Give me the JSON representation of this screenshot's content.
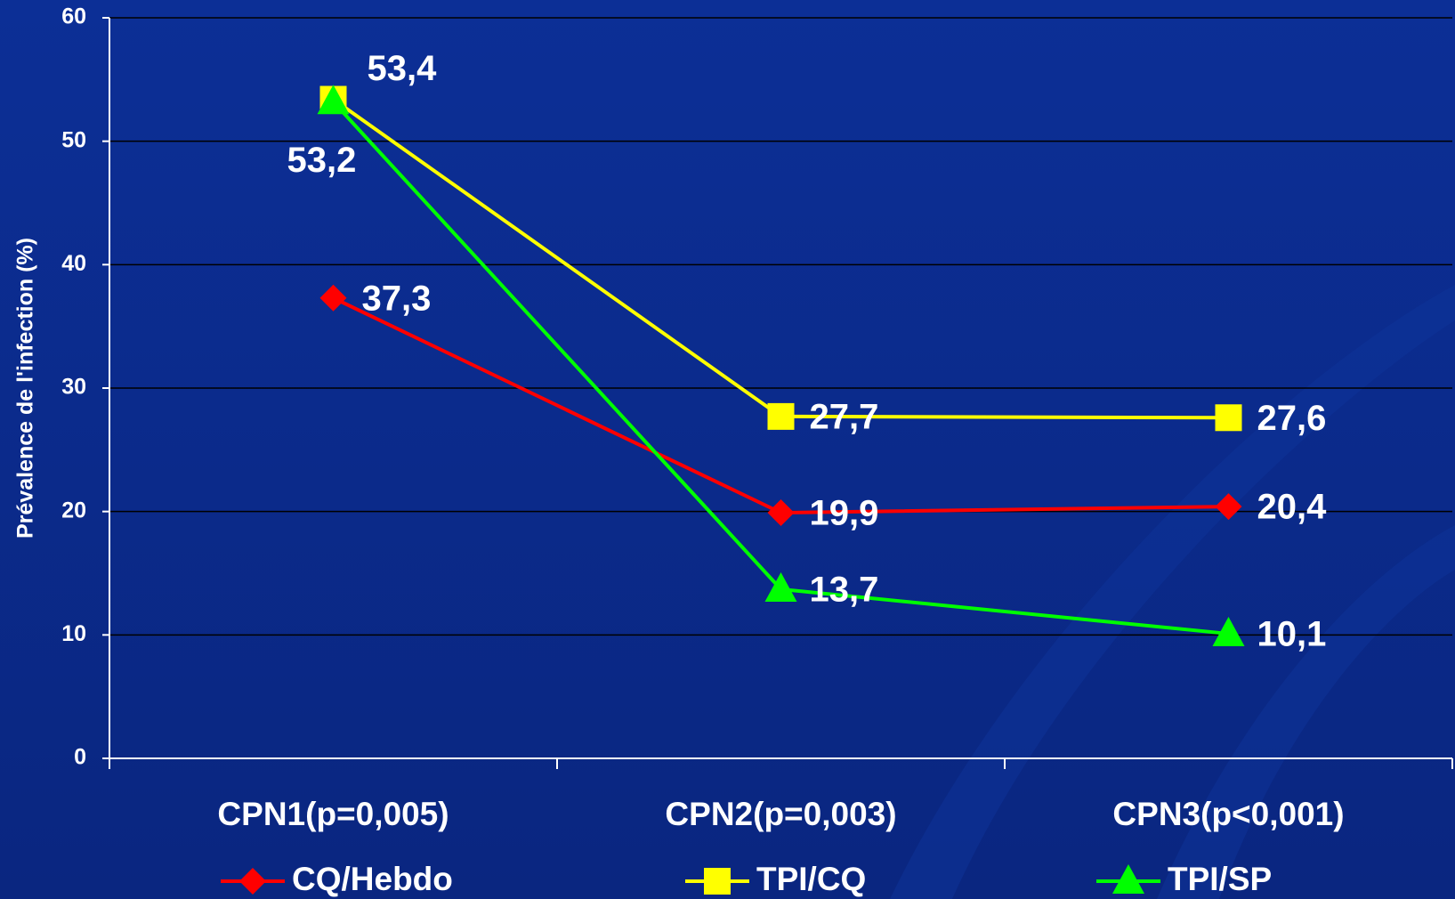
{
  "chart_data": {
    "type": "line",
    "y_label": "Prévalence de l'infection (%)",
    "categories": [
      "CPN1(p=0,005)",
      "CPN2(p=0,003)",
      "CPN3(p<0,001)"
    ],
    "series": [
      {
        "name": "CQ/Hebdo",
        "color": "#ff0000",
        "marker": "diamond",
        "values": [
          37.3,
          19.9,
          20.4
        ],
        "value_labels": [
          "37,3",
          "19,9",
          "20,4"
        ]
      },
      {
        "name": "TPI/CQ",
        "color": "#ffff00",
        "marker": "square",
        "values": [
          53.4,
          27.7,
          27.6
        ],
        "value_labels": [
          "53,4",
          "27,7",
          "27,6"
        ]
      },
      {
        "name": "TPI/SP",
        "color": "#00ff00",
        "marker": "triangle",
        "values": [
          53.2,
          13.7,
          10.1
        ],
        "value_labels": [
          "53,2",
          "13,7",
          "10,1"
        ]
      }
    ],
    "ylim": [
      0,
      60
    ],
    "yticks": [
      0,
      10,
      20,
      30,
      40,
      50,
      60
    ],
    "grid": true,
    "legend": "bottom"
  }
}
